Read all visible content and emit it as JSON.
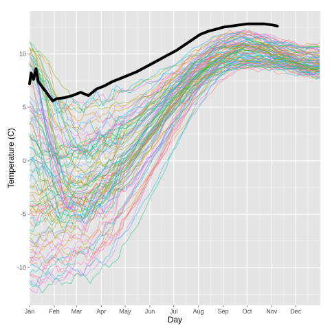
{
  "chart_data": {
    "type": "line",
    "xlabel": "Day",
    "ylabel": "Temperature (C)",
    "x_unit": "day of year",
    "x_range": [
      1,
      365
    ],
    "ylim": [
      -13.5,
      14
    ],
    "x_ticks": [
      {
        "label": "Jan",
        "day": 1
      },
      {
        "label": "Feb",
        "day": 32
      },
      {
        "label": "Mar",
        "day": 60
      },
      {
        "label": "Apr",
        "day": 91
      },
      {
        "label": "May",
        "day": 121
      },
      {
        "label": "Jun",
        "day": 152
      },
      {
        "label": "Jul",
        "day": 182
      },
      {
        "label": "Aug",
        "day": 213
      },
      {
        "label": "Sep",
        "day": 244
      },
      {
        "label": "Oct",
        "day": 274
      },
      {
        "label": "Nov",
        "day": 305
      },
      {
        "label": "Dec",
        "day": 335
      }
    ],
    "y_ticks": [
      -10,
      -5,
      0,
      5,
      10
    ],
    "grid": true,
    "legend": "none",
    "background_color": "#e5e5e5",
    "grid_color": "#ffffff",
    "highlight_series": {
      "color": "#000000",
      "points": [
        [
          1,
          7.2
        ],
        [
          3,
          8.2
        ],
        [
          6,
          7.6
        ],
        [
          9,
          8.6
        ],
        [
          12,
          7.4
        ],
        [
          16,
          7.0
        ],
        [
          20,
          6.6
        ],
        [
          25,
          6.1
        ],
        [
          30,
          5.6
        ],
        [
          35,
          5.8
        ],
        [
          45,
          5.9
        ],
        [
          55,
          6.1
        ],
        [
          65,
          6.4
        ],
        [
          75,
          6.1
        ],
        [
          85,
          6.7
        ],
        [
          95,
          7.0
        ],
        [
          105,
          7.4
        ],
        [
          115,
          7.7
        ],
        [
          125,
          8.0
        ],
        [
          135,
          8.3
        ],
        [
          145,
          8.7
        ],
        [
          155,
          9.1
        ],
        [
          165,
          9.5
        ],
        [
          175,
          9.9
        ],
        [
          185,
          10.3
        ],
        [
          195,
          10.8
        ],
        [
          205,
          11.3
        ],
        [
          215,
          11.8
        ],
        [
          225,
          12.1
        ],
        [
          235,
          12.3
        ],
        [
          245,
          12.5
        ],
        [
          255,
          12.6
        ],
        [
          265,
          12.7
        ],
        [
          275,
          12.8
        ],
        [
          285,
          12.8
        ],
        [
          295,
          12.8
        ],
        [
          305,
          12.7
        ],
        [
          312,
          12.6
        ]
      ]
    },
    "background_series": {
      "count": 90,
      "note_on_values": "each series: starts near Jan value, dips/rises toward a late-winter low, climbs to a Sep-Oct peak, eases by Dec",
      "palette": [
        "#f8766d",
        "#e58700",
        "#c99800",
        "#a3a500",
        "#6bb100",
        "#00ba38",
        "#00bf7d",
        "#00c0af",
        "#00bcd8",
        "#00b0f6",
        "#619cff",
        "#b983ff",
        "#e76bf3",
        "#fd61d1",
        "#ff67a4"
      ],
      "start_range": [
        -12,
        11
      ],
      "trough_range": [
        -6,
        5.5
      ],
      "peak_range": [
        8.6,
        12.2
      ],
      "end_range": [
        7.8,
        10.9
      ]
    }
  }
}
